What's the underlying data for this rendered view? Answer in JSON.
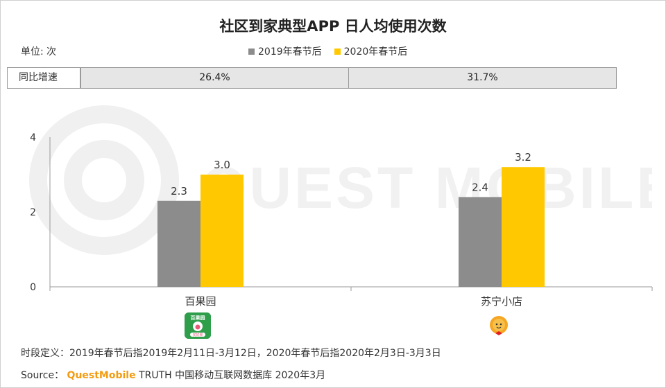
{
  "title": "社区到家典型APP 日人均使用次数",
  "unit_label": "单位: 次",
  "growth_label": "同比增速",
  "growth_values": [
    "26.4%",
    "31.7%"
  ],
  "watermark": "QUEST MOBILE",
  "colors": {
    "series_2019": "#8c8c8c",
    "series_2020": "#ffc800",
    "axis": "#999999",
    "text": "#333333"
  },
  "footnote": "时段定义：2019年春节后指2019年2月11日-3月12日，2020年春节后指2020年2月3日-3月3日",
  "source": {
    "prefix": "Source：",
    "brand": "QuestMobile",
    "suffix": " TRUTH 中国移动互联网数据库 2020年3月"
  },
  "logos": {
    "baiguoyuan": {
      "icon": "baiguoyuan-app-icon",
      "text_top": "百果园",
      "text_bottom": "买好果"
    },
    "suning": {
      "icon": "suning-lion-icon"
    }
  },
  "chart_data": {
    "type": "bar",
    "title": "社区到家典型APP 日人均使用次数",
    "categories": [
      "百果园",
      "苏宁小店"
    ],
    "series": [
      {
        "name": "2019年春节后",
        "values": [
          2.3,
          2.4
        ],
        "labels": [
          "2.3",
          "2.4"
        ]
      },
      {
        "name": "2020年春节后",
        "values": [
          3.0,
          3.2
        ],
        "labels": [
          "3.0",
          "3.2"
        ]
      }
    ],
    "xlabel": "",
    "ylabel": "单位: 次",
    "ylim": [
      0,
      4
    ],
    "yticks": [
      0,
      2,
      4
    ],
    "legend_position": "top-center",
    "grid": false
  }
}
